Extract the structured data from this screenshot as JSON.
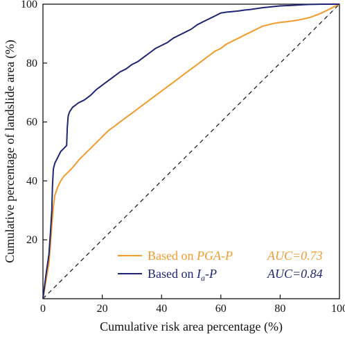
{
  "chart_data": {
    "type": "line",
    "xlabel": "Cumulative risk area percentage (%)",
    "ylabel": "Cumulative percentage of landslide area (%)",
    "xlim": [
      0,
      100
    ],
    "ylim": [
      0,
      100
    ],
    "x_ticks": [
      0,
      20,
      40,
      60,
      80,
      100
    ],
    "y_ticks": [
      20,
      40,
      60,
      80,
      100
    ],
    "grid": false,
    "legend_position": "bottom-right",
    "series": [
      {
        "name": "Based on PGA-P",
        "name_parts": [
          {
            "text": "Based on ",
            "italic": false
          },
          {
            "text": "PGA-P",
            "italic": true
          }
        ],
        "auc": "AUC=0.73",
        "color": "#F39A2B",
        "x": [
          0,
          1,
          2,
          2.5,
          3,
          3.5,
          4,
          5,
          6,
          7,
          8,
          10,
          12,
          14,
          16,
          18,
          20,
          22,
          24,
          26,
          28,
          30,
          32,
          34,
          36,
          38,
          40,
          42,
          44,
          46,
          48,
          50,
          52,
          54,
          56,
          58,
          60,
          62,
          64,
          66,
          68,
          70,
          72,
          74,
          76,
          78,
          80,
          82,
          84,
          86,
          88,
          90,
          92,
          94,
          96,
          98,
          100
        ],
        "y": [
          0,
          6,
          12,
          18,
          25,
          31,
          35,
          38,
          40,
          41.5,
          42.5,
          44.5,
          47,
          49,
          51,
          53,
          55,
          57,
          58.5,
          60,
          61.5,
          63,
          64.5,
          66,
          67.5,
          69,
          70.5,
          72,
          73.5,
          75,
          76.5,
          78,
          79.5,
          81,
          82.5,
          84,
          85,
          86.5,
          87.5,
          88.5,
          89.5,
          90.5,
          91.5,
          92.5,
          93,
          93.5,
          93.8,
          94,
          94.3,
          94.6,
          95,
          95.5,
          96.2,
          97,
          98,
          99,
          100
        ]
      },
      {
        "name": "Based on Ia-P",
        "name_parts": [
          {
            "text": "Based on ",
            "italic": false
          },
          {
            "text": "I",
            "italic": true
          },
          {
            "text": "a",
            "italic": true,
            "sub": true
          },
          {
            "text": "-P",
            "italic": true
          }
        ],
        "auc": "AUC=0.84",
        "color": "#1E2575",
        "x": [
          0,
          1,
          2,
          2.5,
          3,
          3.2,
          3.5,
          4,
          5,
          6,
          7,
          7.5,
          8,
          8.2,
          8.5,
          9,
          10,
          12,
          14,
          16,
          18,
          20,
          22,
          24,
          26,
          28,
          30,
          32,
          34,
          36,
          38,
          40,
          42,
          44,
          46,
          48,
          50,
          52,
          54,
          56,
          58,
          60,
          62,
          64,
          66,
          68,
          70,
          72,
          74,
          76,
          78,
          80,
          82,
          84,
          86,
          88,
          90,
          92,
          94,
          96,
          98,
          100
        ],
        "y": [
          0,
          8,
          15,
          22,
          30,
          38,
          44,
          46,
          48,
          50,
          51,
          51.5,
          52,
          58,
          62,
          63.5,
          65,
          66.5,
          67.5,
          69,
          71,
          72.5,
          74,
          75.5,
          77,
          78,
          79.5,
          80.5,
          82,
          83.5,
          85,
          86,
          87,
          88.5,
          89.5,
          90.5,
          91.5,
          93,
          94,
          95,
          96,
          97,
          97.3,
          97.5,
          97.7,
          98,
          98.2,
          98.5,
          98.8,
          99,
          99.2,
          99.4,
          99.5,
          99.6,
          99.7,
          99.8,
          99.9,
          99.95,
          100,
          100,
          100,
          100
        ]
      }
    ],
    "reference_line": {
      "x": [
        0,
        100
      ],
      "y": [
        0,
        100
      ],
      "style": "dashed",
      "color": "#111111"
    }
  }
}
